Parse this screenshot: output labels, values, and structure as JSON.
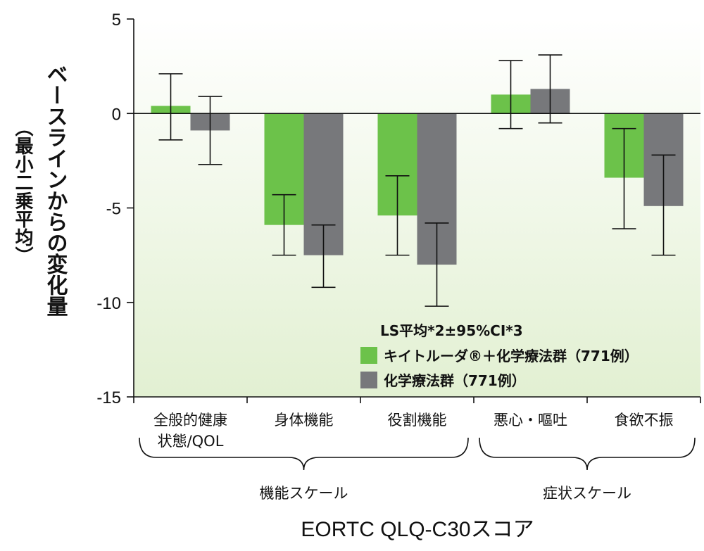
{
  "chart_data": {
    "type": "bar",
    "xlabel": "EORTC QLQ-C30スコア",
    "ylabel": "ベースラインからの変化量",
    "ylabel_sub": "（最小二乗平均）",
    "ylim": [
      -15,
      5
    ],
    "yticks": [
      5,
      0,
      -5,
      -10,
      -15
    ],
    "ytick_labels": [
      "5",
      "0",
      "-5",
      "-10",
      "-15"
    ],
    "categories": [
      "全般的健康\n状態/QOL",
      "身体機能",
      "役割機能",
      "悪心・嘔吐",
      "食欲不振"
    ],
    "category_groups": [
      {
        "label": "機能スケール",
        "categories": [
          0,
          1,
          2
        ]
      },
      {
        "label": "症状スケール",
        "categories": [
          3,
          4
        ]
      }
    ],
    "legend_title": "LS平均*2±95%CI*3",
    "legend_position": "bottom-right",
    "series": [
      {
        "name": "キイトルーダ®＋化学療法群（771例）",
        "color": "#6cc24a",
        "values": [
          0.4,
          -5.9,
          -5.4,
          1.0,
          -3.4
        ],
        "ci_low": [
          -1.4,
          -7.5,
          -7.5,
          -0.8,
          -6.1
        ],
        "ci_high": [
          2.1,
          -4.3,
          -3.3,
          2.8,
          -0.8
        ]
      },
      {
        "name": "化学療法群（771例）",
        "color": "#77787b",
        "values": [
          -0.9,
          -7.5,
          -8.0,
          1.3,
          -4.9
        ],
        "ci_low": [
          -2.7,
          -9.2,
          -10.2,
          -0.5,
          -7.5
        ],
        "ci_high": [
          0.9,
          -5.9,
          -5.8,
          3.1,
          -2.2
        ]
      }
    ]
  }
}
